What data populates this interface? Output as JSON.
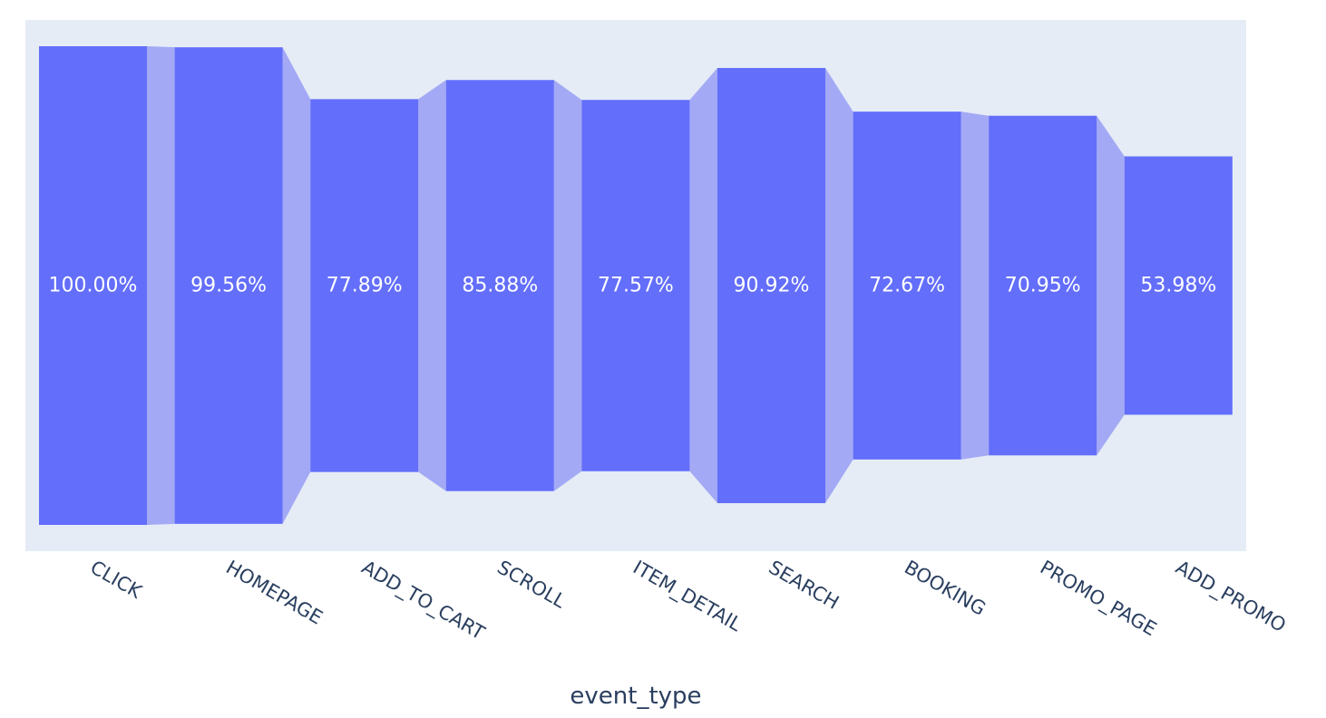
{
  "chart_data": {
    "type": "bar",
    "subtype": "funnel",
    "xlabel": "event_type",
    "categories": [
      "CLICK",
      "HOMEPAGE",
      "ADD_TO_CART",
      "SCROLL",
      "ITEM_DETAIL",
      "SEARCH",
      "BOOKING",
      "PROMO_PAGE",
      "ADD_PROMO"
    ],
    "values": [
      100.0,
      99.56,
      77.89,
      85.88,
      77.57,
      90.92,
      72.67,
      70.95,
      53.98
    ],
    "value_labels": [
      "100.00%",
      "99.56%",
      "77.89%",
      "85.88%",
      "77.57%",
      "90.92%",
      "72.67%",
      "70.95%",
      "53.98%"
    ],
    "colors": {
      "plot_background": "#e5ecf6",
      "bar": "#636efa",
      "connector": "#a3a9f4",
      "text": "#2a3f5f",
      "label": "#ffffff"
    }
  }
}
